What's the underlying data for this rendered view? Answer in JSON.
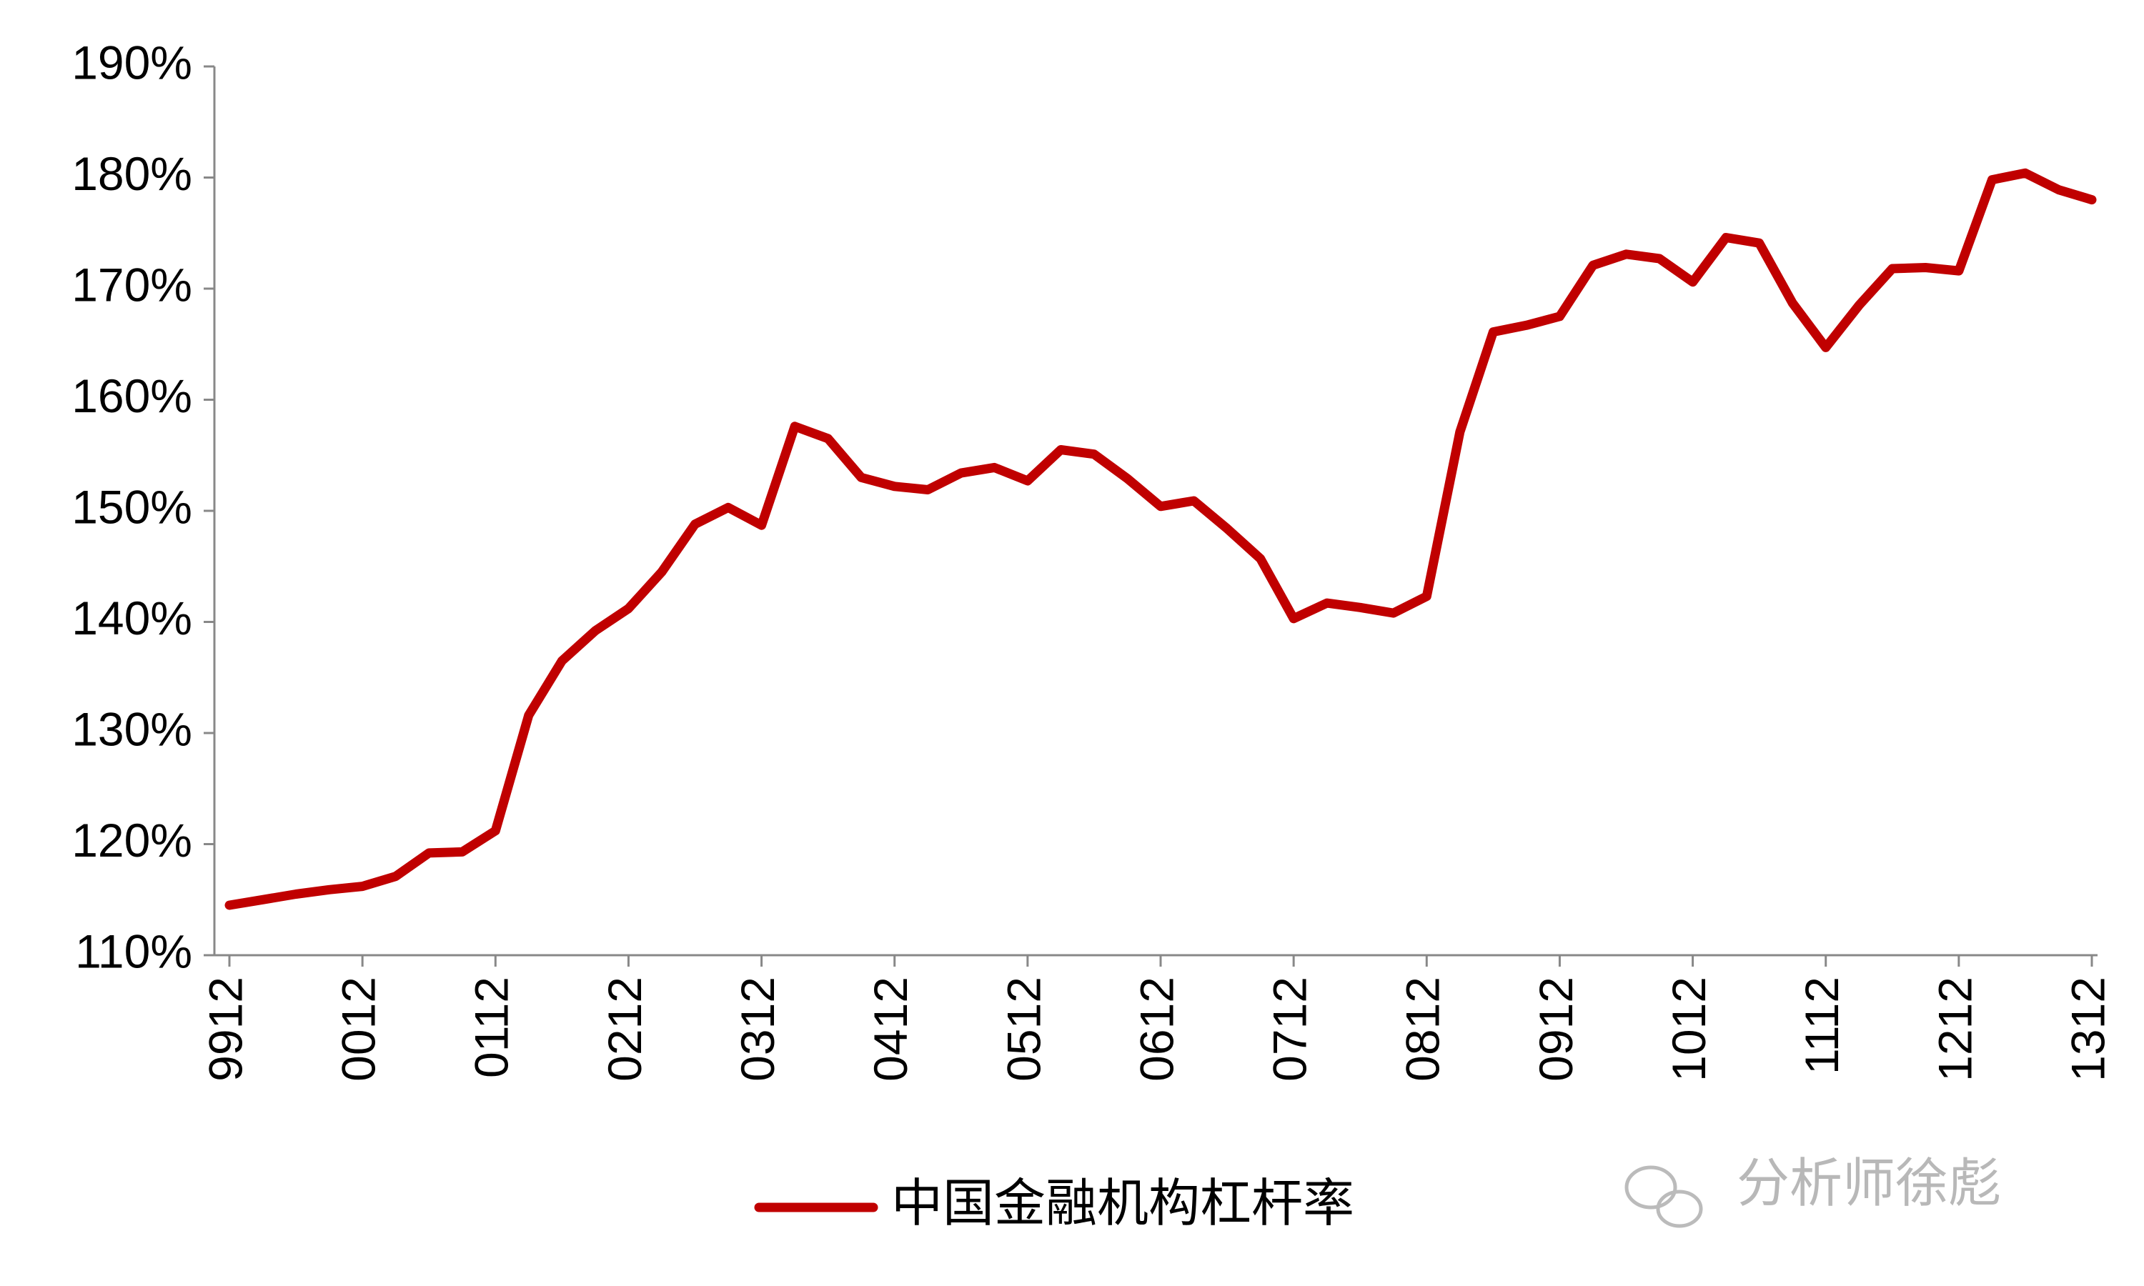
{
  "chart_data": {
    "type": "line",
    "categories": [
      "9912",
      null,
      null,
      null,
      "0012",
      null,
      null,
      null,
      "0112",
      null,
      null,
      null,
      "0212",
      null,
      null,
      null,
      "0312",
      null,
      null,
      null,
      "0412",
      null,
      null,
      null,
      "0512",
      null,
      null,
      null,
      "0612",
      null,
      null,
      null,
      "0712",
      null,
      null,
      null,
      "0812",
      null,
      null,
      null,
      "0912",
      null,
      null,
      null,
      "1012",
      null,
      null,
      null,
      "1112",
      null,
      null,
      null,
      "1212",
      null,
      null,
      null,
      "1312"
    ],
    "series": [
      {
        "name": "中国金融机构杠杆率",
        "color": "#c00000",
        "values": [
          114.5,
          115.0,
          115.5,
          115.9,
          116.2,
          117.1,
          119.2,
          119.3,
          121.2,
          131.6,
          136.5,
          139.2,
          141.2,
          144.5,
          148.8,
          150.3,
          148.7,
          157.6,
          156.5,
          153.0,
          152.2,
          151.9,
          153.4,
          153.9,
          152.7,
          155.5,
          155.1,
          152.9,
          150.4,
          150.9,
          148.4,
          145.7,
          140.3,
          141.7,
          141.3,
          140.8,
          142.3,
          157.1,
          166.1,
          166.7,
          167.5,
          172.1,
          173.1,
          172.7,
          170.6,
          174.6,
          174.1,
          168.7,
          164.7,
          168.5,
          171.8,
          171.9,
          171.6,
          179.8,
          180.4,
          178.9,
          178.0
        ]
      }
    ],
    "ylim": [
      110,
      190
    ],
    "yticks": [
      {
        "value": 110,
        "label": "110%"
      },
      {
        "value": 120,
        "label": "120%"
      },
      {
        "value": 130,
        "label": "130%"
      },
      {
        "value": 140,
        "label": "140%"
      },
      {
        "value": 150,
        "label": "150%"
      },
      {
        "value": 160,
        "label": "160%"
      },
      {
        "value": 170,
        "label": "170%"
      },
      {
        "value": 180,
        "label": "180%"
      },
      {
        "value": 190,
        "label": "190%"
      }
    ],
    "legend": "bottom",
    "watermark": "分析师徐彪"
  }
}
